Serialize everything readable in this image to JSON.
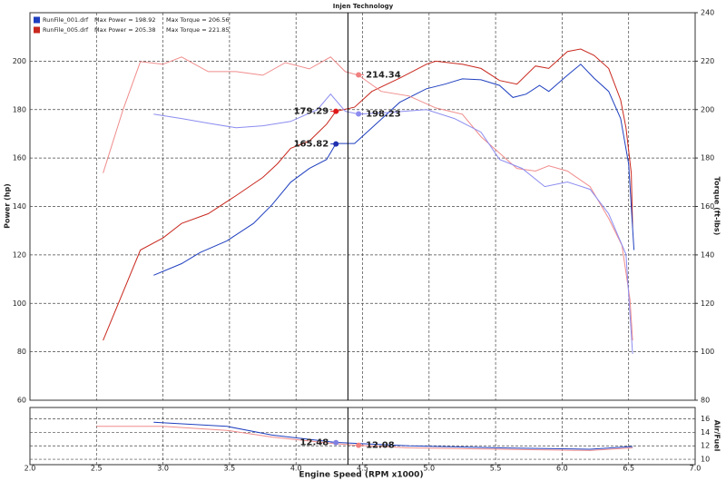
{
  "chart_data": [
    {
      "type": "line",
      "title": "Injen Technology",
      "ylabel": "Power (hp)",
      "y2label": "Torque (ft-lbs)",
      "xlim": [
        2,
        7
      ],
      "ylim": [
        60,
        220
      ],
      "y2lim": [
        80,
        240
      ],
      "yticks": [
        60,
        80,
        100,
        120,
        140,
        160,
        180,
        200
      ],
      "y2ticks": [
        80,
        100,
        120,
        140,
        160,
        180,
        200,
        220,
        240
      ],
      "grid": true,
      "cursor": 4.39,
      "legend": [
        {
          "name": "RunFile_001.drf",
          "max_power": "Max Power = 198.92",
          "max_torque": "Max Torque = 206.56",
          "color": "#1f3fbf"
        },
        {
          "name": "RunFile_005.drf",
          "max_power": "Max Power = 205.38",
          "max_torque": "Max Torque = 221.85",
          "color": "#c8281e"
        }
      ],
      "series": [
        {
          "color": "#c8281e",
          "axis": "y",
          "x": [
            2.55,
            2.83,
            3.0,
            3.14,
            3.34,
            3.55,
            3.75,
            3.86,
            3.96,
            4.1,
            4.23,
            4.3,
            4.44,
            4.57,
            4.78,
            4.98,
            5.05,
            5.25,
            5.39,
            5.53,
            5.66,
            5.8,
            5.9,
            6.04,
            6.14,
            6.24,
            6.35,
            6.44,
            6.48,
            6.52,
            6.53
          ],
          "values": [
            84.7,
            122,
            127,
            133,
            137,
            144.5,
            152,
            157.6,
            164,
            167,
            174,
            179.3,
            181,
            187.5,
            193,
            198.7,
            200,
            198.7,
            197,
            192,
            190.5,
            198,
            197,
            204,
            205,
            202.4,
            197,
            184,
            172.5,
            153.8,
            131.4
          ]
        },
        {
          "color": "#1f3fbf",
          "axis": "y",
          "x": [
            2.93,
            3.14,
            3.28,
            3.48,
            3.68,
            3.82,
            3.96,
            4.1,
            4.23,
            4.3,
            4.44,
            4.57,
            4.78,
            4.98,
            5.12,
            5.25,
            5.39,
            5.53,
            5.63,
            5.73,
            5.83,
            5.9,
            6.04,
            6.14,
            6.24,
            6.35,
            6.44,
            6.5,
            6.54
          ],
          "values": [
            111.6,
            116.4,
            121,
            125.8,
            133,
            140.7,
            150,
            155.7,
            159.4,
            166,
            166,
            172.5,
            183,
            188.6,
            190.5,
            192.7,
            192.3,
            190,
            185,
            186.4,
            190,
            187.5,
            194.2,
            198.7,
            193,
            187.5,
            176.3,
            157.6,
            122
          ]
        },
        {
          "color": "#f08c8c",
          "axis": "y2",
          "x": [
            2.55,
            2.7,
            2.83,
            3.0,
            3.14,
            3.34,
            3.55,
            3.75,
            3.92,
            4.1,
            4.26,
            4.37,
            4.47,
            4.64,
            4.85,
            5.05,
            5.25,
            5.39,
            5.53,
            5.66,
            5.8,
            5.9,
            6.04,
            6.21,
            6.35,
            6.45,
            6.51,
            6.53
          ],
          "values": [
            173.8,
            200,
            219.8,
            218.7,
            221.7,
            215.7,
            215.7,
            214.2,
            219.4,
            216.8,
            221.7,
            215.7,
            214.2,
            207.5,
            205.6,
            200.7,
            198.1,
            188.8,
            182,
            175.7,
            174.6,
            176.8,
            174.6,
            168.2,
            155.1,
            143.9,
            121.5,
            104.7
          ]
        },
        {
          "color": "#8c8cf0",
          "axis": "y2",
          "x": [
            2.93,
            3.14,
            3.34,
            3.55,
            3.75,
            3.96,
            4.16,
            4.26,
            4.37,
            4.47,
            4.71,
            4.98,
            5.19,
            5.39,
            5.53,
            5.7,
            5.87,
            6.04,
            6.21,
            6.35,
            6.48,
            6.53
          ],
          "values": [
            198.1,
            196.3,
            194.4,
            192.5,
            193.3,
            195.1,
            200,
            206.4,
            199.3,
            198.1,
            198.9,
            200,
            196.3,
            190.7,
            179.4,
            175.7,
            168.2,
            170.1,
            167.1,
            157,
            140.2,
            99.1
          ]
        }
      ],
      "readouts": [
        {
          "x": 4.3,
          "value": 179.29,
          "axis": "y",
          "color": "#e01818"
        },
        {
          "x": 4.3,
          "value": 165.82,
          "axis": "y",
          "color": "#1f2fb0"
        },
        {
          "x": 4.47,
          "value": 214.34,
          "axis": "y2",
          "color": "#f08080"
        },
        {
          "x": 4.47,
          "value": 198.23,
          "axis": "y2",
          "color": "#8c8cf0"
        }
      ]
    },
    {
      "type": "line",
      "ylabel": "Air/Fuel",
      "xlabel": "Engine Speed (RPM x1000)",
      "xlim": [
        2,
        7
      ],
      "ylim": [
        9.2,
        17.7
      ],
      "xticks": [
        {
          "value": 2,
          "label": "2.0"
        },
        2.5,
        {
          "value": 3,
          "label": "3.0"
        },
        3.5,
        {
          "value": 4,
          "label": "4.0"
        },
        4.5,
        {
          "value": 5,
          "label": "5.0"
        },
        5.5,
        {
          "value": 6,
          "label": "6.0"
        },
        6.5,
        {
          "value": 7,
          "label": "7.0"
        }
      ],
      "yticks": [
        10,
        12,
        14,
        16
      ],
      "grid": true,
      "cursor": 4.39,
      "series": [
        {
          "color": "#f08c8c",
          "axis": "y",
          "x": [
            2.5,
            3.0,
            3.48,
            3.82,
            4.3,
            4.47,
            4.85,
            5.53,
            6.21,
            6.53
          ],
          "values": [
            14.9,
            14.9,
            14.3,
            13.3,
            12.3,
            12.08,
            11.7,
            11.5,
            11.3,
            11.7
          ]
        },
        {
          "color": "#1f3fbf",
          "axis": "y",
          "x": [
            2.93,
            3.48,
            3.82,
            4.3,
            4.85,
            5.53,
            6.21,
            6.53
          ],
          "values": [
            15.5,
            14.9,
            13.6,
            12.5,
            12,
            11.7,
            11.5,
            11.9
          ]
        }
      ],
      "readouts": [
        {
          "x": 4.3,
          "value": 12.48,
          "axis": "y",
          "color": "#8080e0"
        },
        {
          "x": 4.47,
          "value": 12.08,
          "axis": "y",
          "color": "#f08080"
        }
      ]
    }
  ]
}
